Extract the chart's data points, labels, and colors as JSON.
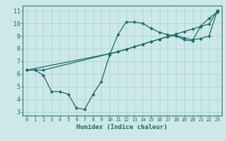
{
  "title": "",
  "xlabel": "Humidex (Indice chaleur)",
  "xlim": [
    -0.5,
    23.5
  ],
  "ylim": [
    2.7,
    11.4
  ],
  "xticks": [
    0,
    1,
    2,
    3,
    4,
    5,
    6,
    7,
    8,
    9,
    10,
    11,
    12,
    13,
    14,
    15,
    16,
    17,
    18,
    19,
    20,
    21,
    22,
    23
  ],
  "yticks": [
    3,
    4,
    5,
    6,
    7,
    8,
    9,
    10,
    11
  ],
  "bg_color": "#cce8e8",
  "line_color": "#1a6b6b",
  "grid_color": "#b0d4d4",
  "series": [
    {
      "x": [
        0,
        1,
        2,
        3,
        4,
        5,
        6,
        7,
        8,
        9,
        10,
        11,
        12,
        13,
        14,
        15,
        16,
        17,
        18,
        19,
        20,
        21,
        22,
        23
      ],
      "y": [
        6.3,
        6.3,
        5.9,
        4.6,
        4.6,
        4.4,
        3.3,
        3.2,
        4.4,
        5.4,
        7.5,
        9.1,
        10.1,
        10.1,
        10.0,
        9.6,
        9.3,
        9.1,
        9.0,
        8.7,
        8.6,
        9.8,
        10.4,
        10.9
      ]
    },
    {
      "x": [
        0,
        1,
        2,
        10,
        11,
        12,
        13,
        14,
        15,
        16,
        17,
        18,
        19,
        20,
        21,
        22,
        23
      ],
      "y": [
        6.3,
        6.3,
        6.3,
        7.6,
        7.75,
        7.95,
        8.15,
        8.35,
        8.55,
        8.75,
        8.95,
        9.15,
        9.35,
        9.55,
        9.75,
        9.95,
        11.0
      ]
    },
    {
      "x": [
        0,
        10,
        11,
        12,
        13,
        14,
        15,
        16,
        17,
        18,
        19,
        20,
        21,
        22,
        23
      ],
      "y": [
        6.3,
        7.6,
        7.75,
        7.95,
        8.15,
        8.35,
        8.55,
        8.75,
        8.95,
        9.05,
        8.85,
        8.7,
        8.8,
        9.0,
        11.0
      ]
    }
  ]
}
